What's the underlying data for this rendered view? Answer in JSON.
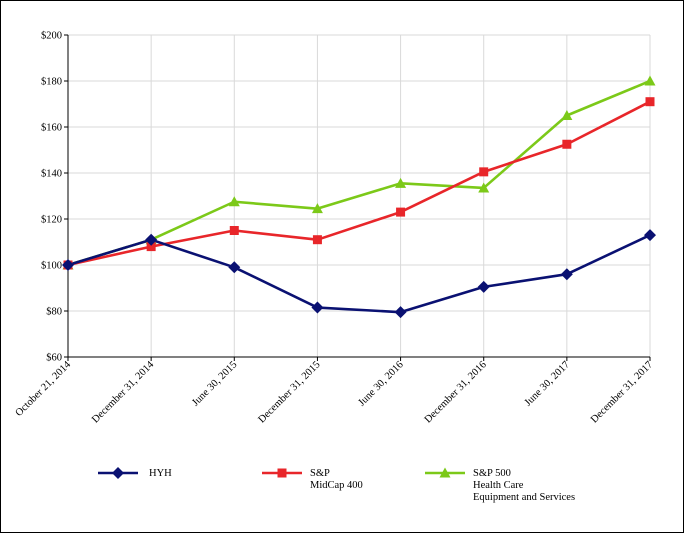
{
  "chart_data": {
    "type": "line",
    "title": "",
    "xlabel": "",
    "ylabel": "",
    "categories": [
      "October 21, 2014",
      "December 31, 2014",
      "June 30, 2015",
      "December 31, 2015",
      "June 30, 2016",
      "December 31, 2016",
      "June 30, 2017",
      "December 31, 2017"
    ],
    "ylim": [
      60,
      200
    ],
    "yticks": [
      60,
      80,
      100,
      120,
      140,
      160,
      180,
      200
    ],
    "ytick_labels": [
      "$60",
      "$80",
      "$100",
      "$120",
      "$140",
      "$160",
      "$180",
      "$200"
    ],
    "grid": true,
    "legend_position": "bottom",
    "series": [
      {
        "name": "HYH",
        "color": "#0a1172",
        "marker": "diamond",
        "values": [
          100,
          111,
          99,
          81.5,
          79.5,
          90.5,
          96,
          113
        ]
      },
      {
        "name": "S&P MidCap 400",
        "legend_lines": [
          "S&P",
          "MidCap 400"
        ],
        "color": "#e8262a",
        "marker": "square",
        "values": [
          100,
          108,
          115,
          111,
          123,
          140.5,
          152.5,
          171
        ]
      },
      {
        "name": "S&P 500 Health Care Equipment and Services",
        "legend_lines": [
          "S&P 500",
          "Health Care",
          "Equipment and Services"
        ],
        "color": "#7cc919",
        "marker": "triangle",
        "values": [
          100,
          111,
          127.5,
          124.5,
          135.5,
          133.5,
          165,
          180
        ]
      }
    ]
  }
}
